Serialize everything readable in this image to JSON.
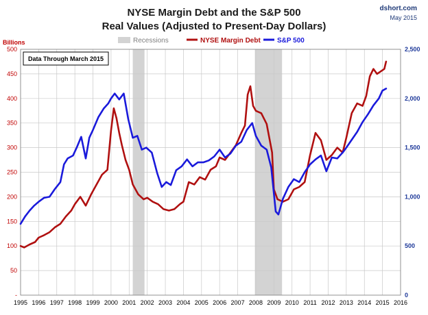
{
  "chart_data": {
    "type": "line",
    "title": "NYSE Margin Debt and the S&P 500",
    "subtitle": "Real Values (Adjusted to Present-Day Dollars)",
    "source": "dshort.com",
    "source_date": "May 2015",
    "note": "Data Through March 2015",
    "left_axis_label": "Billions",
    "left_ticks": [
      "-",
      "50",
      "100",
      "150",
      "200",
      "250",
      "300",
      "350",
      "400",
      "450",
      "500"
    ],
    "right_ticks": [
      "0",
      "500",
      "1,000",
      "1,500",
      "2,000",
      "2,500"
    ],
    "x_ticks": [
      "1995",
      "1996",
      "1997",
      "1998",
      "1999",
      "2000",
      "2001",
      "2002",
      "2003",
      "2004",
      "2005",
      "2006",
      "2007",
      "2008",
      "2009",
      "2010",
      "2011",
      "2012",
      "2013",
      "2014",
      "2015",
      "2016"
    ],
    "x_range": [
      1995,
      2016
    ],
    "left_range": [
      0,
      500
    ],
    "right_range": [
      0,
      2500
    ],
    "grid": true,
    "legend_position": "top",
    "recessions_label": "Recessions",
    "recessions": [
      [
        2001.2,
        2001.85
      ],
      [
        2007.95,
        2009.45
      ]
    ],
    "colors": {
      "margin_debt": "#b01010",
      "sp500": "#1a1adb",
      "recession": "#d3d3d3",
      "left_axis": "#c00000",
      "right_axis": "#1f3a9a"
    },
    "series": [
      {
        "name": "NYSE Margin Debt",
        "axis": "left",
        "x": [
          1995.0,
          1995.2,
          1995.5,
          1995.8,
          1996.0,
          1996.3,
          1996.6,
          1996.9,
          1997.2,
          1997.5,
          1997.8,
          1998.0,
          1998.3,
          1998.6,
          1998.9,
          1999.2,
          1999.5,
          1999.8,
          2000.0,
          2000.15,
          2000.3,
          2000.45,
          2000.6,
          2000.8,
          2001.0,
          2001.2,
          2001.5,
          2001.8,
          2002.0,
          2002.3,
          2002.6,
          2002.9,
          2003.2,
          2003.5,
          2003.8,
          2004.0,
          2004.3,
          2004.6,
          2004.9,
          2005.2,
          2005.5,
          2005.8,
          2006.0,
          2006.3,
          2006.6,
          2006.9,
          2007.2,
          2007.4,
          2007.55,
          2007.7,
          2007.85,
          2008.0,
          2008.3,
          2008.6,
          2008.9,
          2009.0,
          2009.2,
          2009.5,
          2009.8,
          2010.1,
          2010.4,
          2010.7,
          2011.0,
          2011.3,
          2011.6,
          2011.9,
          2012.2,
          2012.5,
          2012.8,
          2013.0,
          2013.3,
          2013.6,
          2013.9,
          2014.1,
          2014.3,
          2014.5,
          2014.7,
          2014.9,
          2015.1,
          2015.2
        ],
        "values": [
          100,
          97,
          103,
          108,
          117,
          122,
          128,
          138,
          145,
          160,
          172,
          185,
          200,
          182,
          205,
          225,
          245,
          255,
          335,
          380,
          360,
          330,
          305,
          275,
          255,
          225,
          205,
          195,
          198,
          190,
          185,
          175,
          172,
          175,
          185,
          190,
          230,
          225,
          240,
          235,
          255,
          262,
          280,
          275,
          290,
          305,
          330,
          345,
          408,
          425,
          385,
          375,
          370,
          348,
          290,
          215,
          195,
          190,
          195,
          215,
          220,
          230,
          285,
          330,
          315,
          275,
          285,
          300,
          290,
          320,
          370,
          390,
          385,
          405,
          445,
          460,
          450,
          455,
          460,
          475
        ]
      },
      {
        "name": "S&P 500",
        "axis": "right",
        "x": [
          1995.0,
          1995.25,
          1995.5,
          1995.75,
          1996.0,
          1996.3,
          1996.6,
          1996.9,
          1997.2,
          1997.4,
          1997.6,
          1997.9,
          1998.1,
          1998.35,
          1998.6,
          1998.8,
          1999.0,
          1999.3,
          1999.6,
          1999.85,
          2000.0,
          2000.2,
          2000.45,
          2000.7,
          2000.95,
          2001.2,
          2001.45,
          2001.7,
          2001.95,
          2002.25,
          2002.55,
          2002.8,
          2003.05,
          2003.3,
          2003.6,
          2003.9,
          2004.2,
          2004.5,
          2004.8,
          2005.1,
          2005.4,
          2005.7,
          2006.0,
          2006.3,
          2006.6,
          2006.9,
          2007.2,
          2007.5,
          2007.8,
          2008.0,
          2008.3,
          2008.6,
          2008.85,
          2009.1,
          2009.25,
          2009.5,
          2009.8,
          2010.1,
          2010.4,
          2010.7,
          2011.0,
          2011.3,
          2011.6,
          2011.9,
          2012.2,
          2012.5,
          2012.8,
          2013.0,
          2013.3,
          2013.6,
          2013.9,
          2014.2,
          2014.5,
          2014.8,
          2015.0,
          2015.2
        ],
        "values": [
          725,
          800,
          860,
          910,
          950,
          990,
          1000,
          1080,
          1150,
          1330,
          1390,
          1420,
          1500,
          1610,
          1390,
          1600,
          1680,
          1810,
          1900,
          1950,
          2000,
          2050,
          1990,
          2050,
          1790,
          1600,
          1620,
          1480,
          1500,
          1450,
          1240,
          1100,
          1150,
          1120,
          1270,
          1310,
          1380,
          1310,
          1350,
          1350,
          1370,
          1410,
          1480,
          1400,
          1440,
          1520,
          1560,
          1680,
          1750,
          1620,
          1520,
          1480,
          1300,
          850,
          820,
          980,
          1100,
          1180,
          1150,
          1250,
          1330,
          1380,
          1420,
          1260,
          1400,
          1390,
          1450,
          1500,
          1580,
          1660,
          1760,
          1840,
          1930,
          2000,
          2080,
          2100
        ]
      }
    ]
  }
}
